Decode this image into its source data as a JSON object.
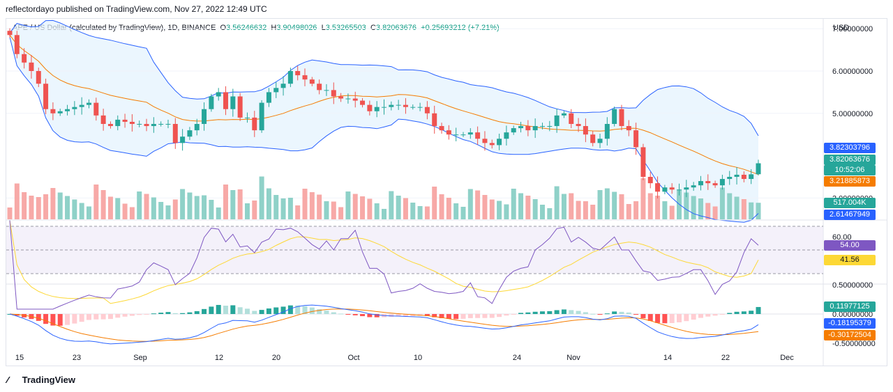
{
  "header": "reflectordayo published on TradingView.com, Nov 27, 2022 12:49 UTC",
  "legend": {
    "symbol": "APE / US Dollar (calculated by TradingView), 1D, BINANCE",
    "o_label": "O",
    "o": "3.56246632",
    "h_label": "H",
    "h": "3.90498026",
    "l_label": "L",
    "l": "3.53265503",
    "c_label": "C",
    "c": "3.82063676",
    "change": "+0.25693212 (+7.21%)"
  },
  "currency": "USD",
  "footer_logo": "TradingView",
  "price_axis": {
    "ticks": [
      "7.00000000",
      "6.00000000",
      "5.00000000",
      "3.00000000"
    ],
    "tags": {
      "upper_band": "3.82303796",
      "price": "3.82063676",
      "countdown": "10:52:06",
      "basis": "3.21885873",
      "volume": "517.004K",
      "lower_band": "2.61467949"
    }
  },
  "rsi_axis": {
    "top": "60.00",
    "rsi": "54.00",
    "ma": "41.56"
  },
  "macd_axis": {
    "top": "0.50000000",
    "zero": "0.00000000",
    "bottom": "-0.50000000",
    "hist": "0.11977125",
    "macd": "-0.18195379",
    "signal": "-0.30172504"
  },
  "x_ticks": [
    "15",
    "23",
    "Sep",
    "12",
    "20",
    "Oct",
    "10",
    "24",
    "Nov",
    "14",
    "22",
    "Dec"
  ],
  "colors": {
    "up": "#26a69a",
    "down": "#ef5350",
    "band": "#2962ff",
    "basis": "#f57c00",
    "rsi": "#7e57c2",
    "rsi_ma": "#fdd835",
    "vol_up": "#8fd1c8",
    "vol_down": "#f7a9a7"
  },
  "chart_data": {
    "type": "candlestick",
    "ohlc_last": {
      "open": 3.56246632,
      "high": 3.90498026,
      "low": 3.53265503,
      "close": 3.82063676
    },
    "close_estimates": [
      6.85,
      6.4,
      6.2,
      6.0,
      5.7,
      5.1,
      5.0,
      5.05,
      5.1,
      5.15,
      5.2,
      5.25,
      4.95,
      4.75,
      4.7,
      4.85,
      4.8,
      4.75,
      4.75,
      4.7,
      4.75,
      4.75,
      4.75,
      4.3,
      4.45,
      4.6,
      4.75,
      5.1,
      5.4,
      5.5,
      5.1,
      5.4,
      4.9,
      4.9,
      4.6,
      5.25,
      5.5,
      5.6,
      5.7,
      6.0,
      5.9,
      5.8,
      5.7,
      5.55,
      5.55,
      5.4,
      5.35,
      5.35,
      5.3,
      5.2,
      5.05,
      5.15,
      5.15,
      5.2,
      5.2,
      5.15,
      5.15,
      5.15,
      5.0,
      4.7,
      4.6,
      4.5,
      4.5,
      4.5,
      4.55,
      4.4,
      4.3,
      4.25,
      4.4,
      4.55,
      4.65,
      4.7,
      4.6,
      4.7,
      4.7,
      4.7,
      4.95,
      5.0,
      4.75,
      4.7,
      4.5,
      4.3,
      4.4,
      4.75,
      5.1,
      4.7,
      4.6,
      4.2,
      3.5,
      3.35,
      3.15,
      3.25,
      3.2,
      3.2,
      3.25,
      3.3,
      3.4,
      3.35,
      3.3,
      3.45,
      3.5,
      3.55,
      3.45,
      3.56,
      3.82
    ]
  }
}
